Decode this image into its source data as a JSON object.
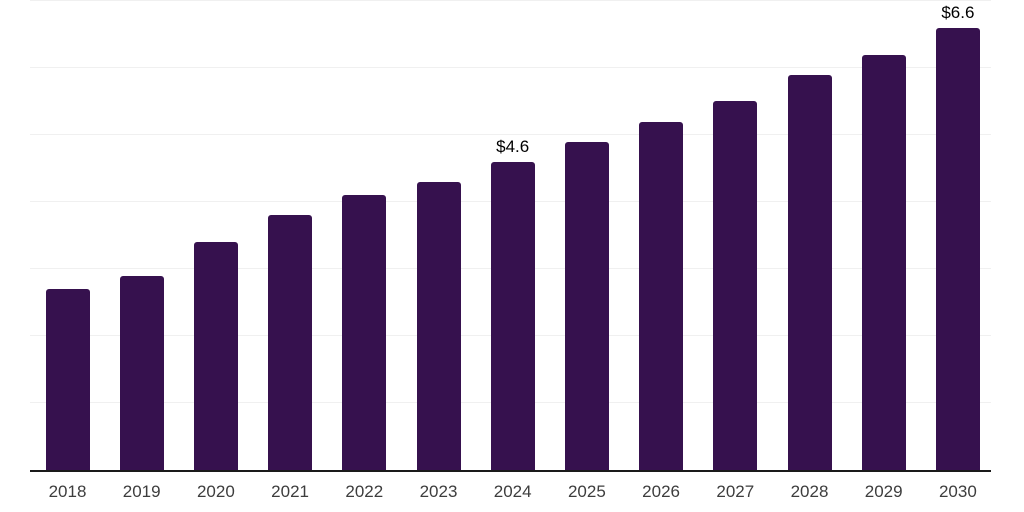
{
  "chart_data": {
    "type": "bar",
    "categories": [
      "2018",
      "2019",
      "2020",
      "2021",
      "2022",
      "2023",
      "2024",
      "2025",
      "2026",
      "2027",
      "2028",
      "2029",
      "2030"
    ],
    "values": [
      2.7,
      2.9,
      3.4,
      3.8,
      4.1,
      4.3,
      4.6,
      4.9,
      5.2,
      5.5,
      5.9,
      6.2,
      6.6
    ],
    "data_labels": [
      "",
      "",
      "",
      "",
      "",
      "",
      "$4.6",
      "",
      "",
      "",
      "",
      "",
      "$6.6"
    ],
    "title": "",
    "xlabel": "",
    "ylabel": "",
    "ylim": [
      0,
      7
    ],
    "gridline_interval": 1,
    "grid": true,
    "legend": false,
    "colors": {
      "bar": "#36114E",
      "gridline": "#f0f0f0",
      "axis_line": "#1a1a1a",
      "x_tick_label": "#3d3d3d",
      "data_label": "#000000",
      "background": "#ffffff"
    }
  }
}
